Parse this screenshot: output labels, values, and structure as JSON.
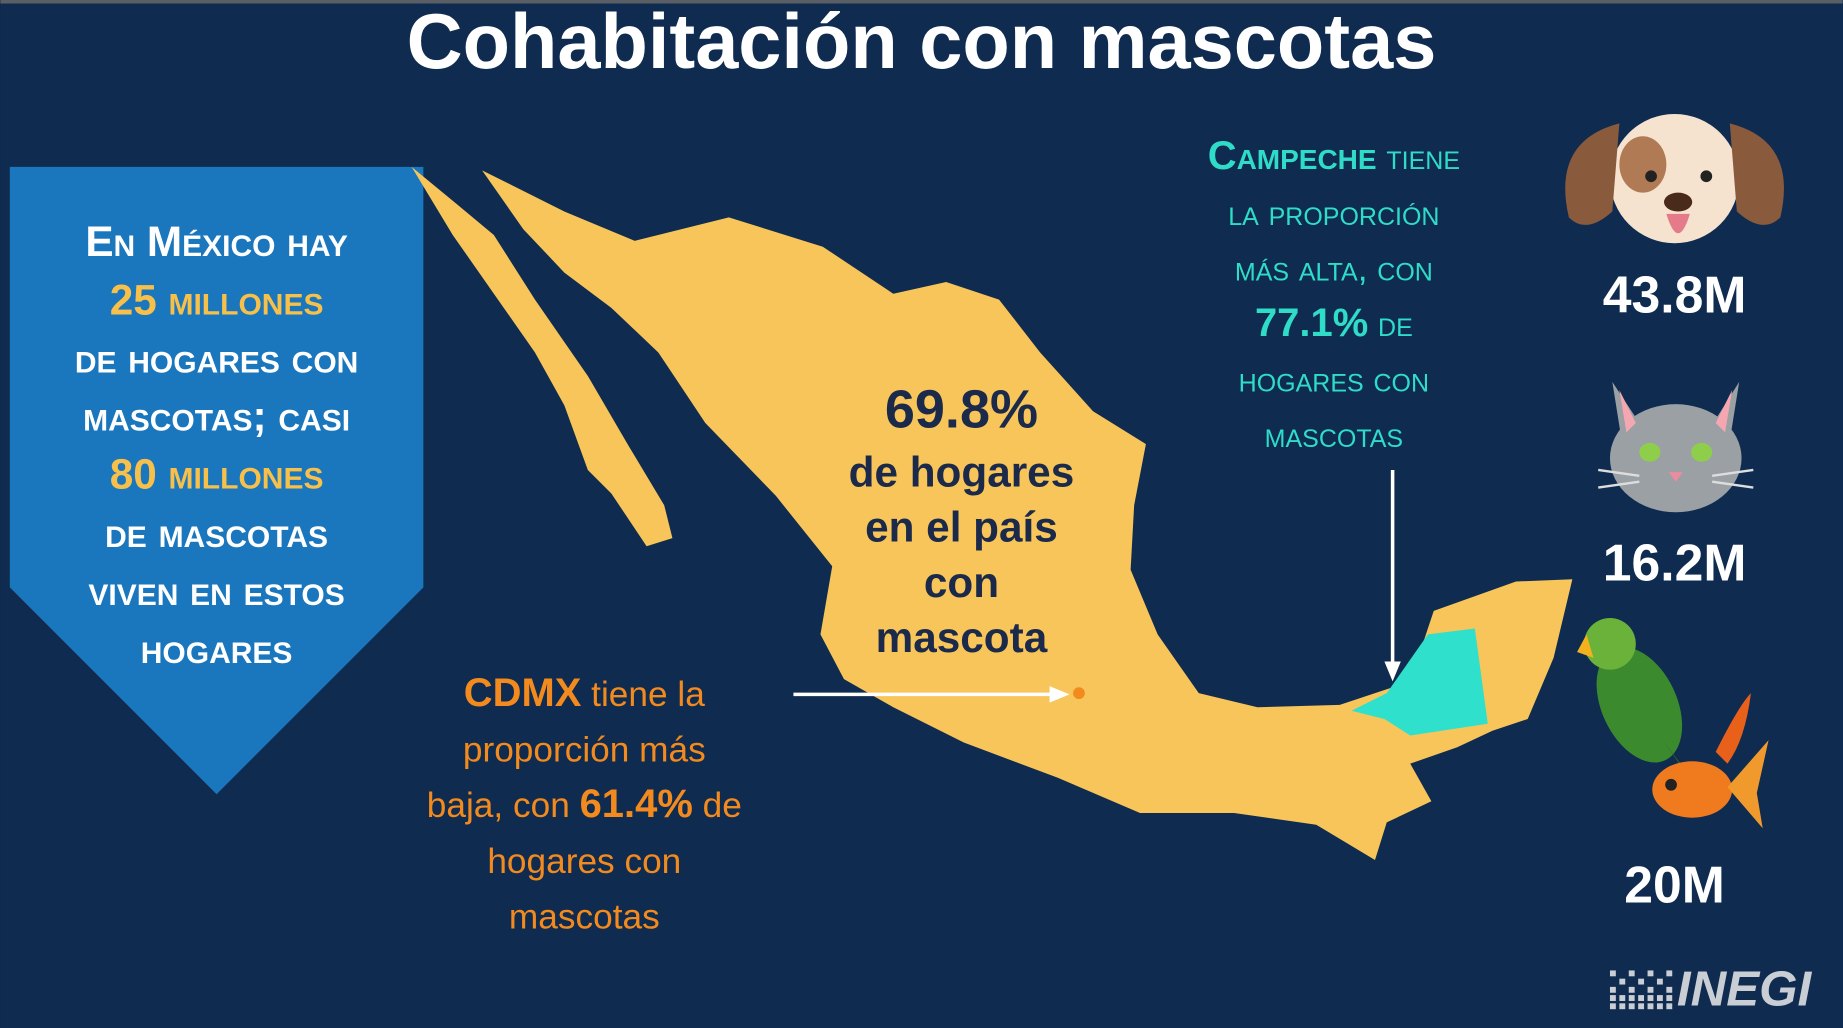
{
  "title": "Cohabitación con mascotas",
  "panel": {
    "lines": [
      [
        {
          "text": "En México hay",
          "color": "#ffffff"
        }
      ],
      [
        {
          "text": "25 millones",
          "color": "#f7c04a"
        }
      ],
      [
        {
          "text": "de hogares con",
          "color": "#ffffff"
        }
      ],
      [
        {
          "text": "mascotas; casi",
          "color": "#ffffff"
        }
      ],
      [
        {
          "text": "80 millones",
          "color": "#f7c04a"
        }
      ],
      [
        {
          "text": "de mascotas",
          "color": "#ffffff"
        }
      ],
      [
        {
          "text": "viven en estos",
          "color": "#ffffff"
        }
      ],
      [
        {
          "text": "hogares",
          "color": "#ffffff"
        }
      ]
    ]
  },
  "center": {
    "value": "69.8%",
    "lines": [
      "de hogares",
      "en el país",
      "con",
      "mascota"
    ]
  },
  "cdmx": {
    "color": "#f28a1e",
    "lines": [
      [
        {
          "text": "CDMX",
          "bold": true
        },
        {
          "text": " tiene la",
          "bold": false
        }
      ],
      [
        {
          "text": "proporción más",
          "bold": false
        }
      ],
      [
        {
          "text": "baja, con ",
          "bold": false
        },
        {
          "text": "61.4%",
          "bold": true
        },
        {
          "text": " de",
          "bold": false
        }
      ],
      [
        {
          "text": "hogares con",
          "bold": false
        }
      ],
      [
        {
          "text": "mascotas",
          "bold": false
        }
      ]
    ]
  },
  "campeche": {
    "color": "#2fdcc8",
    "lines": [
      [
        {
          "text": "Campeche",
          "bold": true
        },
        {
          "text": " tiene",
          "bold": false
        }
      ],
      [
        {
          "text": "la proporción",
          "bold": false
        }
      ],
      [
        {
          "text": "más alta, con",
          "bold": false
        }
      ],
      [
        {
          "text": "77.1%",
          "bold": true
        },
        {
          "text": " de",
          "bold": false
        }
      ],
      [
        {
          "text": "hogares con",
          "bold": false
        }
      ],
      [
        {
          "text": "mascotas",
          "bold": false
        }
      ]
    ]
  },
  "pets": [
    "43.8M",
    "16.2M",
    "20M"
  ],
  "logo": "INEGI"
}
